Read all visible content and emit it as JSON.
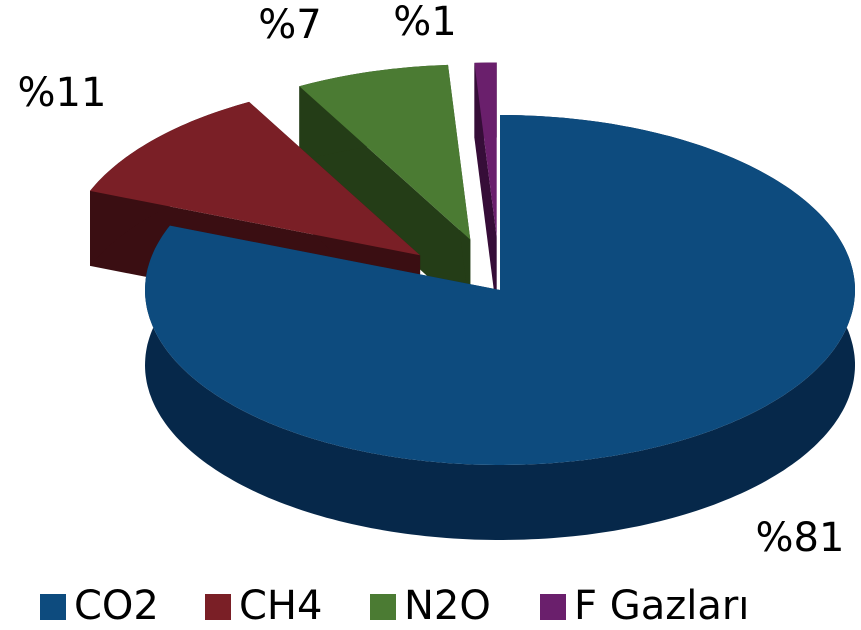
{
  "chart_data": {
    "type": "pie",
    "categories": [
      "CO2",
      "CH4",
      "N2O",
      "F Gazları"
    ],
    "values": [
      81,
      11,
      7,
      1
    ],
    "value_labels": [
      "%81",
      "%11",
      "%7",
      "%1"
    ],
    "colors": [
      "#0d4b7e",
      "#7a1f26",
      "#4b7b33",
      "#6a1f6c"
    ],
    "side_colors": [
      "#06284a",
      "#3a0e12",
      "#243d17",
      "#360d38"
    ],
    "legend": "bottom"
  }
}
